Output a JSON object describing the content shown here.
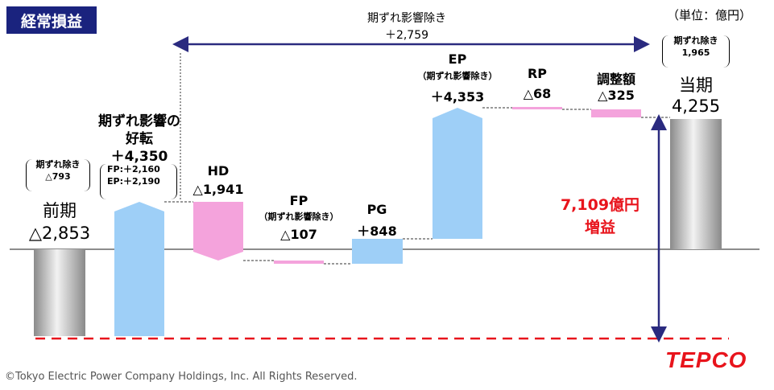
{
  "title": "経常損益",
  "unit_label": "（単位：億円）",
  "copyright": "©Tokyo Electric Power Company Holdings, Inc. All Rights Reserved.",
  "logo_text": "TEPCO",
  "colors": {
    "prev_total": "#9e9e9e",
    "increase": "#9ecff7",
    "decrease": "#f4a3dc",
    "baseline": "#8c8c8c",
    "arrow": "#2a2a7f",
    "red": "#e8141c",
    "title_bg": "#1a237e"
  },
  "chart_data": {
    "type": "waterfall",
    "items": [
      {
        "key": "prev",
        "name": "前期",
        "value": "△2,853",
        "note_label": "期ずれ除き",
        "note_value": "△793",
        "kind": "total"
      },
      {
        "key": "jisure",
        "name_line1": "期ずれ影響の",
        "name_line2": "好転",
        "value": "＋4,350",
        "sub_fp": "FP:＋2,160",
        "sub_ep": "EP:＋2,190",
        "kind": "increase"
      },
      {
        "key": "hd",
        "name": "HD",
        "value": "△1,941",
        "kind": "decrease"
      },
      {
        "key": "fp",
        "name": "FP",
        "sub": "（期ずれ影響除き）",
        "value": "△107",
        "kind": "decrease"
      },
      {
        "key": "pg",
        "name": "PG",
        "value": "＋848",
        "kind": "increase"
      },
      {
        "key": "ep",
        "name": "EP",
        "sub": "（期ずれ影響除き）",
        "value": "＋4,353",
        "kind": "increase"
      },
      {
        "key": "rp",
        "name": "RP",
        "value": "△68",
        "kind": "decrease"
      },
      {
        "key": "adj",
        "name": "調整額",
        "value": "△325",
        "kind": "decrease"
      },
      {
        "key": "curr",
        "name": "当期",
        "value": "4,255",
        "note_label": "期ずれ除き",
        "note_value": "1,965",
        "kind": "total"
      }
    ],
    "annotations": {
      "top_arrow_label": "期ずれ影響除き",
      "top_arrow_value": "＋2,759",
      "profit_line1": "7,109億円",
      "profit_line2": "増益"
    }
  }
}
